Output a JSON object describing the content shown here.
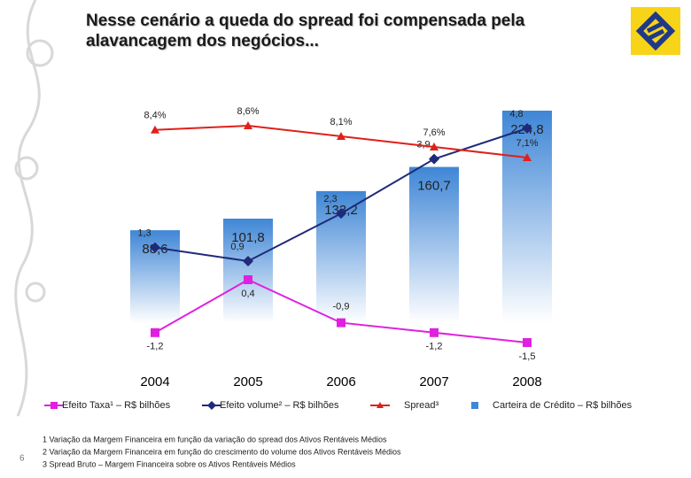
{
  "title": "Nesse cenário a queda do spread foi compensada pela alavancagem dos negócios...",
  "page_number": "6",
  "footnotes": [
    "1 Variação da Margem Financeira em função da variação do spread dos Ativos Rentáveis Médios",
    "2 Variação da Margem Financeira em função do crescimento do volume dos Ativos Rentáveis Médios",
    "3 Spread Bruto – Margem Financeira sobre os Ativos Rentáveis Médios"
  ],
  "chart_data": {
    "type": "bar",
    "categories": [
      "2004",
      "2005",
      "2006",
      "2007",
      "2008"
    ],
    "series": [
      {
        "name": "Efeito Taxa¹ – R$ bilhões",
        "type": "line",
        "marker": "square",
        "color": "#e020e0",
        "values": [
          -1.2,
          0.4,
          -0.9,
          -1.2,
          -1.5
        ],
        "value_labels": [
          "-1,2",
          "0,4",
          "-0,9",
          "-1,2",
          "-1,5"
        ]
      },
      {
        "name": "Efeito volume² – R$ bilhões",
        "type": "line",
        "marker": "diamond",
        "color": "#1f2a7a",
        "values": [
          1.3,
          0.9,
          2.3,
          3.9,
          4.8
        ],
        "value_labels": [
          "1,3",
          "0,9",
          "2,3",
          "3,9",
          "4,8"
        ]
      },
      {
        "name": "Spread³",
        "type": "line",
        "marker": "triangle",
        "color": "#e0201a",
        "values": [
          8.4,
          8.6,
          8.1,
          7.6,
          7.1
        ],
        "value_labels": [
          "8,4%",
          "8,6%",
          "8,1%",
          "7,6%",
          "7,1%"
        ]
      },
      {
        "name": "Carteira de Crédito – R$ bilhões",
        "type": "bar",
        "color": "#3f86d6",
        "values": [
          88.6,
          101.8,
          133.2,
          160.7,
          224.8
        ],
        "value_labels": [
          "88,6",
          "101,8",
          "133,2",
          "160,7",
          "224,8"
        ]
      }
    ]
  }
}
